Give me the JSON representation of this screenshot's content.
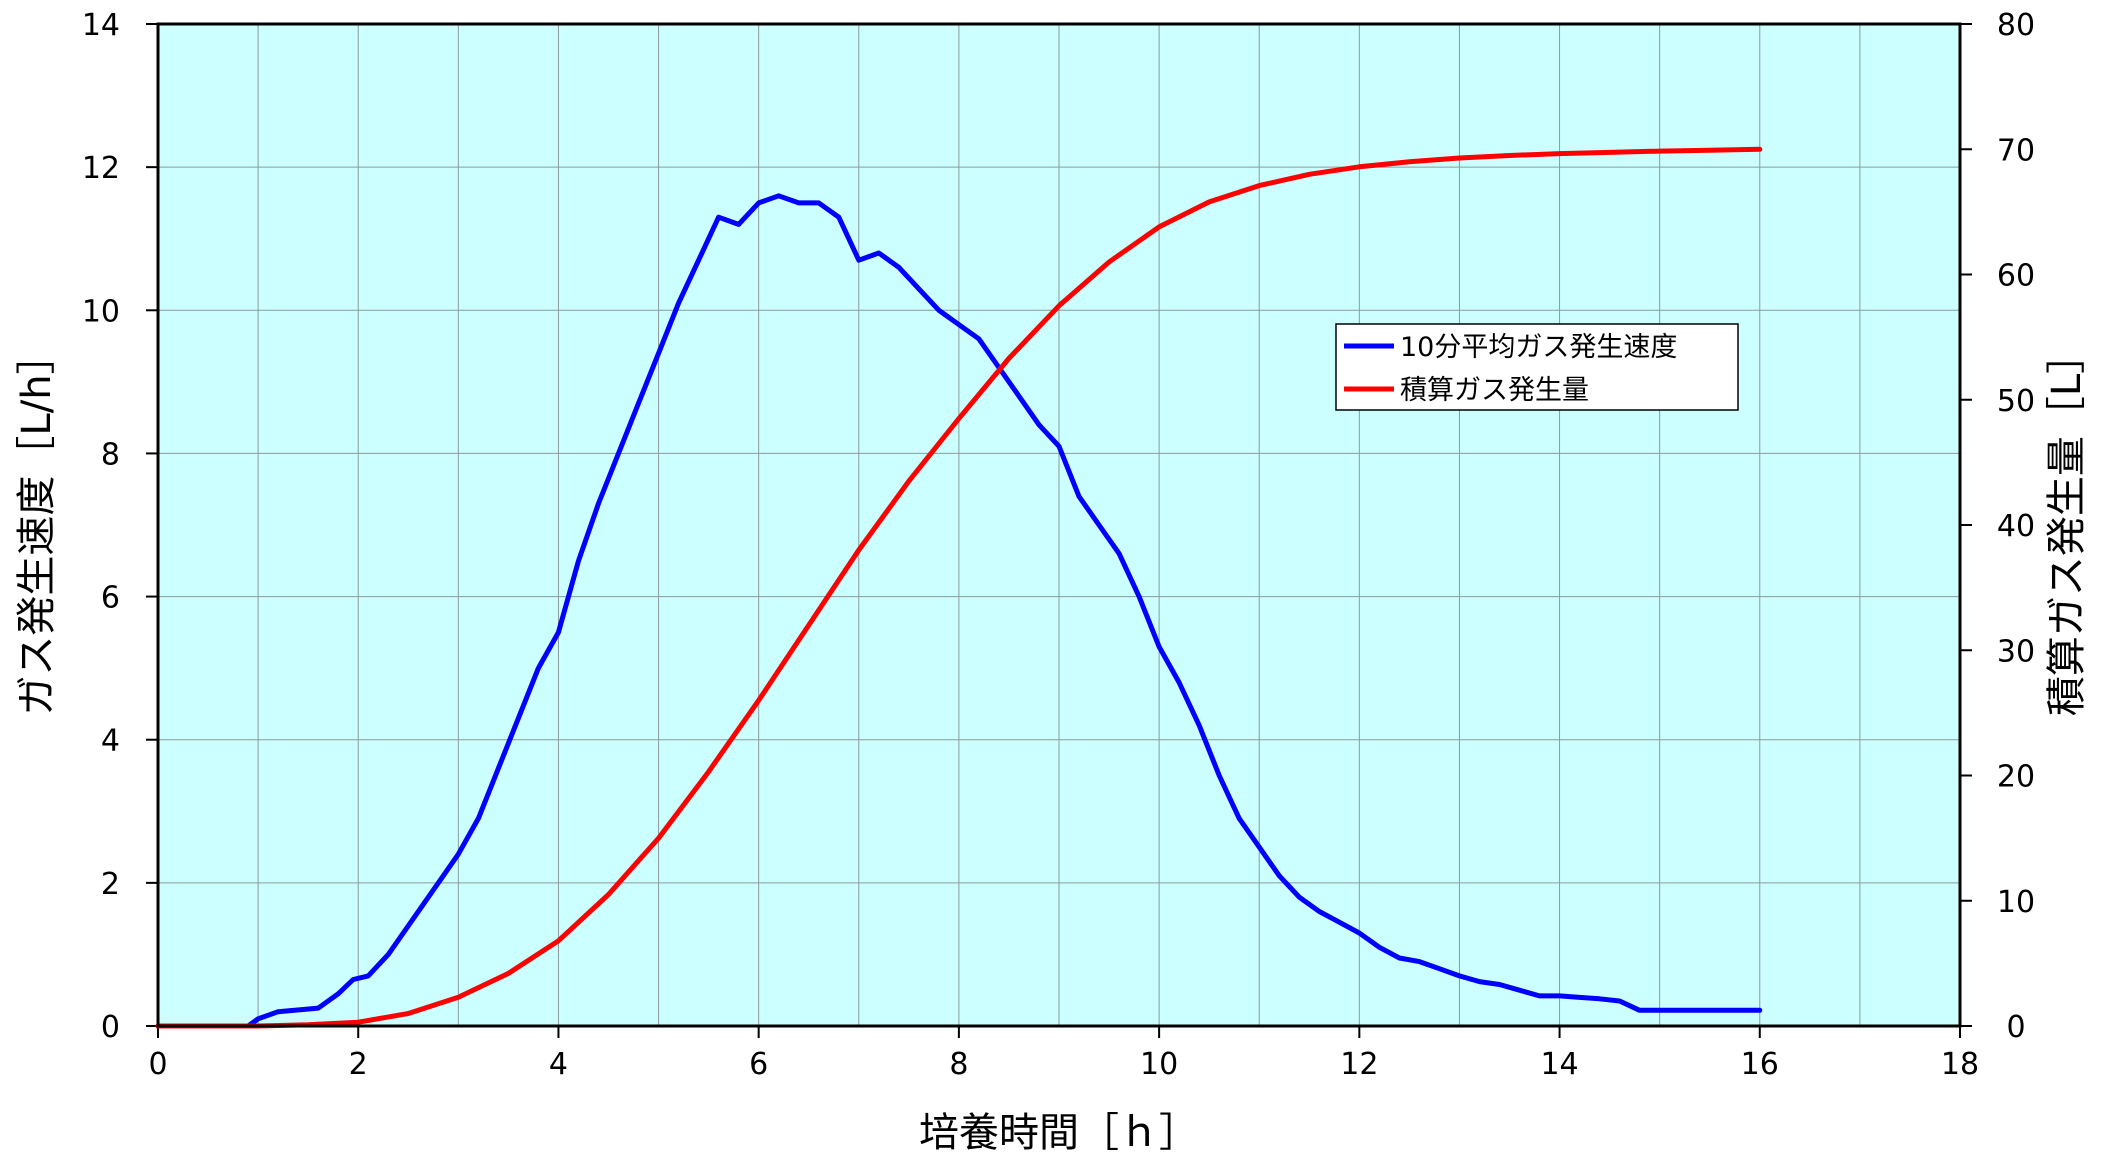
{
  "chart_data": {
    "type": "line",
    "xlabel": "培養時間［ｈ］",
    "ylabel_left": "ガス発生速度［L/h］",
    "ylabel_right": "積算ガス発生量［L］",
    "xlim": [
      0,
      18
    ],
    "ylim_left": [
      0,
      14
    ],
    "ylim_right": [
      0,
      80
    ],
    "x_ticks": [
      0,
      2,
      4,
      6,
      8,
      10,
      12,
      14,
      16,
      18
    ],
    "y_left_ticks": [
      0,
      2,
      4,
      6,
      8,
      10,
      12,
      14
    ],
    "y_right_ticks": [
      0,
      10,
      20,
      30,
      40,
      50,
      60,
      70,
      80
    ],
    "grid": true,
    "plot_background": "#ccffff",
    "legend_position": "right-center",
    "series": [
      {
        "name": "10分平均ガス発生速度",
        "axis": "left",
        "color": "#0000ff",
        "x": [
          0,
          0.9,
          1.0,
          1.2,
          1.6,
          1.8,
          1.95,
          2.1,
          2.3,
          2.5,
          2.8,
          3.0,
          3.2,
          3.4,
          3.6,
          3.8,
          4.0,
          4.2,
          4.4,
          4.6,
          4.8,
          5.0,
          5.2,
          5.4,
          5.6,
          5.8,
          6.0,
          6.2,
          6.4,
          6.6,
          6.8,
          7.0,
          7.2,
          7.4,
          7.6,
          7.8,
          8.0,
          8.2,
          8.4,
          8.6,
          8.8,
          9.0,
          9.2,
          9.4,
          9.6,
          9.8,
          10.0,
          10.2,
          10.4,
          10.6,
          10.8,
          11.0,
          11.2,
          11.4,
          11.6,
          11.8,
          12.0,
          12.2,
          12.4,
          12.6,
          12.8,
          13.0,
          13.2,
          13.4,
          13.6,
          13.8,
          14.0,
          14.2,
          14.4,
          14.6,
          14.8,
          15.0,
          15.5,
          16.0
        ],
        "y": [
          0.0,
          0.0,
          0.1,
          0.2,
          0.25,
          0.45,
          0.65,
          0.7,
          1.0,
          1.4,
          2.0,
          2.4,
          2.9,
          3.6,
          4.3,
          5.0,
          5.5,
          6.5,
          7.3,
          8.0,
          8.7,
          9.4,
          10.1,
          10.7,
          11.3,
          11.2,
          11.5,
          11.6,
          11.5,
          11.5,
          11.3,
          10.7,
          10.8,
          10.6,
          10.3,
          10.0,
          9.8,
          9.6,
          9.2,
          8.8,
          8.4,
          8.1,
          7.4,
          7.0,
          6.6,
          6.0,
          5.3,
          4.8,
          4.2,
          3.5,
          2.9,
          2.5,
          2.1,
          1.8,
          1.6,
          1.45,
          1.3,
          1.1,
          0.95,
          0.9,
          0.8,
          0.7,
          0.62,
          0.58,
          0.5,
          0.42,
          0.42,
          0.4,
          0.38,
          0.35,
          0.22,
          0.22,
          0.22,
          0.22
        ]
      },
      {
        "name": "積算ガス発生量",
        "axis": "right",
        "color": "#ff0000",
        "x": [
          0,
          1,
          1.5,
          2,
          2.5,
          3,
          3.5,
          4,
          4.5,
          5,
          5.5,
          6,
          6.5,
          7,
          7.5,
          8,
          8.5,
          9,
          9.5,
          10,
          10.5,
          11,
          11.5,
          12,
          12.5,
          13,
          13.5,
          14,
          14.5,
          15,
          15.5,
          16
        ],
        "y": [
          0,
          0,
          0.1,
          0.3,
          1.0,
          2.3,
          4.2,
          6.8,
          10.5,
          15.0,
          20.3,
          26.0,
          32.0,
          38.0,
          43.5,
          48.5,
          53.3,
          57.5,
          61.0,
          63.8,
          65.8,
          67.1,
          68.0,
          68.6,
          69.0,
          69.3,
          69.5,
          69.65,
          69.75,
          69.85,
          69.92,
          70.0
        ]
      }
    ]
  }
}
